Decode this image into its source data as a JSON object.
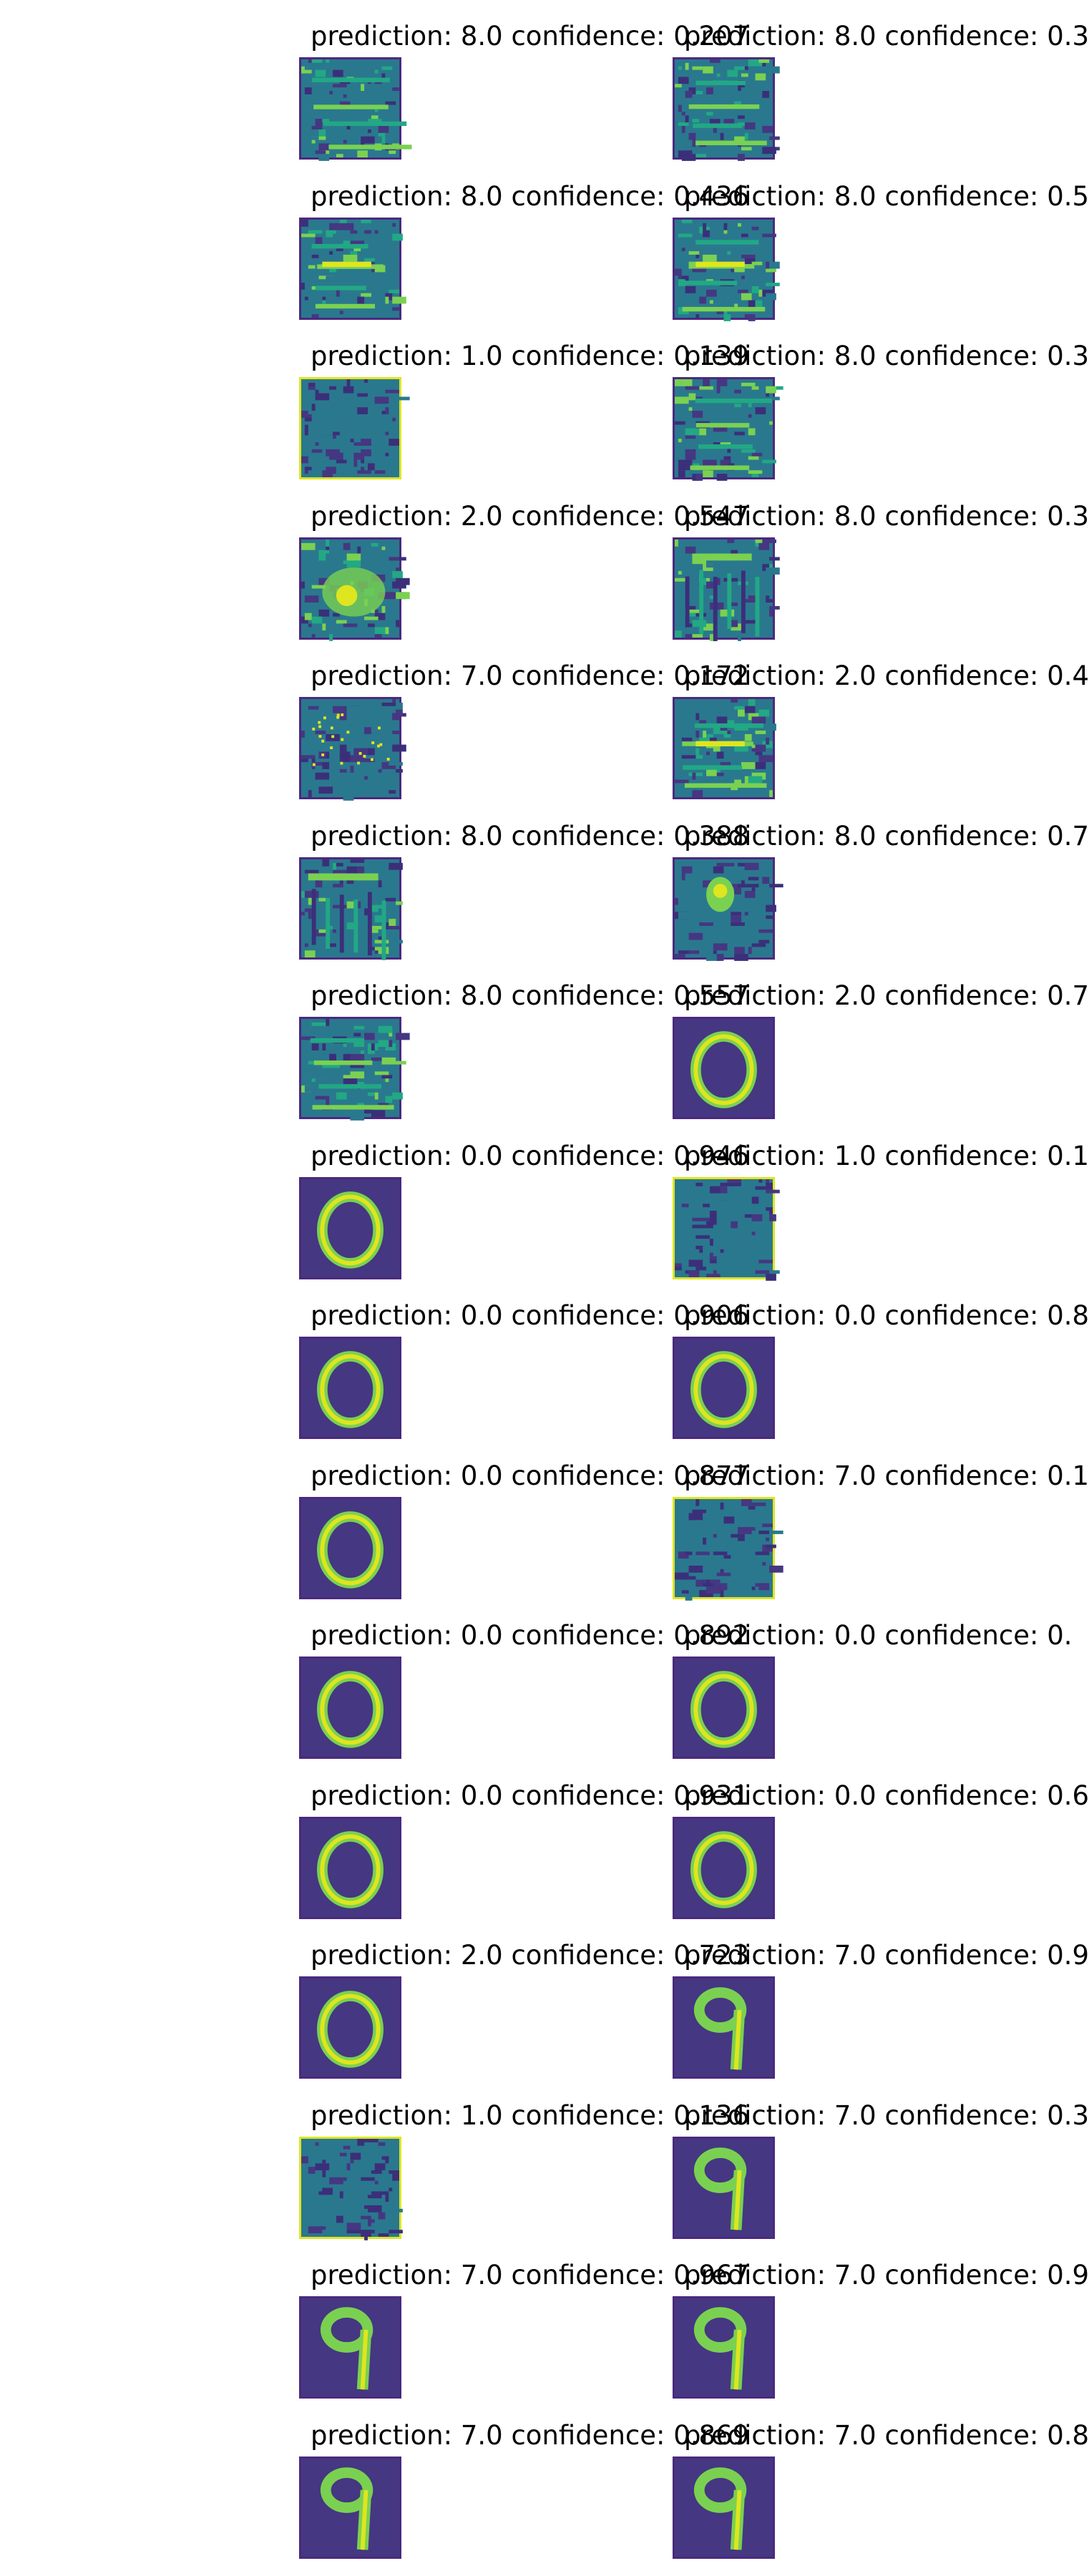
{
  "panels": [
    {
      "title": "prediction: 8.0 confidence: 0.207",
      "image": "noise-horizontal-streaks"
    },
    {
      "title": "prediction: 8.0 confidence: 0.3",
      "image": "noise-horizontal-streaks"
    },
    {
      "title": "prediction: 8.0 confidence: 0.436",
      "image": "noise-horizontal-line"
    },
    {
      "title": "prediction: 8.0 confidence: 0.5",
      "image": "noise-horizontal-line"
    },
    {
      "title": "prediction: 1.0 confidence: 0.139",
      "image": "dark-noise-bright-border"
    },
    {
      "title": "prediction: 8.0 confidence: 0.3",
      "image": "noise-horizontal-streaks"
    },
    {
      "title": "prediction: 2.0 confidence: 0.547",
      "image": "noise-bright-blob"
    },
    {
      "title": "prediction: 8.0 confidence: 0.3",
      "image": "noise-vertical-streaks"
    },
    {
      "title": "prediction: 7.0 confidence: 0.172",
      "image": "dark-with-yellow-dots"
    },
    {
      "title": "prediction: 2.0 confidence: 0.4",
      "image": "noise-horizontal-line"
    },
    {
      "title": "prediction: 8.0 confidence: 0.388",
      "image": "noise-vertical-streaks"
    },
    {
      "title": "prediction: 8.0 confidence: 0.7",
      "image": "dark-center-blob"
    },
    {
      "title": "prediction: 8.0 confidence: 0.557",
      "image": "noise-horizontal-streaks"
    },
    {
      "title": "prediction: 2.0 confidence: 0.7",
      "image": "digit-0"
    },
    {
      "title": "prediction: 0.0 confidence: 0.946",
      "image": "digit-0"
    },
    {
      "title": "prediction: 1.0 confidence: 0.1",
      "image": "dark-noise-bright-border"
    },
    {
      "title": "prediction: 0.0 confidence: 0.906",
      "image": "digit-0"
    },
    {
      "title": "prediction: 0.0 confidence: 0.8",
      "image": "digit-0"
    },
    {
      "title": "prediction: 0.0 confidence: 0.877",
      "image": "digit-0"
    },
    {
      "title": "prediction: 7.0 confidence: 0.1",
      "image": "dark-noise-bright-border"
    },
    {
      "title": "prediction: 0.0 confidence: 0.892",
      "image": "digit-0"
    },
    {
      "title": "prediction: 0.0 confidence: 0.",
      "image": "digit-0"
    },
    {
      "title": "prediction: 0.0 confidence: 0.931",
      "image": "digit-0"
    },
    {
      "title": "prediction: 0.0 confidence: 0.6",
      "image": "digit-0"
    },
    {
      "title": "prediction: 2.0 confidence: 0.723",
      "image": "digit-0"
    },
    {
      "title": "prediction: 7.0 confidence: 0.9",
      "image": "digit-9"
    },
    {
      "title": "prediction: 1.0 confidence: 0.136",
      "image": "dark-noise-bright-border"
    },
    {
      "title": "prediction: 7.0 confidence: 0.3",
      "image": "digit-9"
    },
    {
      "title": "prediction: 7.0 confidence: 0.967",
      "image": "digit-9"
    },
    {
      "title": "prediction: 7.0 confidence: 0.9",
      "image": "digit-9"
    },
    {
      "title": "prediction: 7.0 confidence: 0.869",
      "image": "digit-9"
    },
    {
      "title": "prediction: 7.0 confidence: 0.8",
      "image": "digit-9"
    }
  ],
  "colors": {
    "background": "#453781",
    "dark": "#3b2f7a",
    "mid": "#2a788e",
    "teal": "#22a884",
    "green": "#7ad151",
    "yellow": "#dfe51f",
    "border": "#4a2a7e"
  }
}
